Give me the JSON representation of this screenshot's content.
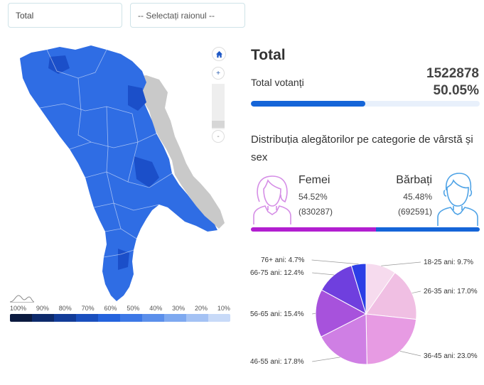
{
  "filters": {
    "scope_value": "Total",
    "raion_placeholder": "-- Selectați raionul --"
  },
  "map": {
    "home_icon": "home-icon",
    "zoom_in_label": "+",
    "zoom_out_label": "-",
    "legend_labels": [
      "100%",
      "90%",
      "80%",
      "70%",
      "60%",
      "50%",
      "40%",
      "30%",
      "20%",
      "10%"
    ],
    "legend_colors": [
      "#0b1a3f",
      "#0d2a6b",
      "#123c98",
      "#1a4fbe",
      "#2463dd",
      "#3d78e6",
      "#5b8feb",
      "#7ea9f0",
      "#a4c2f4",
      "#c8daf8"
    ],
    "region_color": "#2f6de4",
    "region_dark_color": "#1b4fc9",
    "transnistria_color": "#c9c9c9"
  },
  "summary": {
    "title": "Total",
    "votanti_label": "Total votanți",
    "votanti_count": "1522878",
    "votanti_percent": "50.05%",
    "progress_fraction": 0.5005
  },
  "distribution": {
    "title": "Distribuția alegătorilor pe categorie de vârstă și sex",
    "female": {
      "label": "Femei",
      "percent": "54.52%",
      "count": "(830287)",
      "fraction": 0.5452,
      "color": "#b21ed0"
    },
    "male": {
      "label": "Bărbați",
      "percent": "45.48%",
      "count": "(692591)",
      "fraction": 0.4548,
      "color": "#1565d8"
    }
  },
  "chart_data": {
    "type": "pie",
    "categories": [
      "18-25 ani",
      "26-35 ani",
      "36-45 ani",
      "46-55 ani",
      "56-65 ani",
      "66-75 ani",
      "76+ ani"
    ],
    "values": [
      9.7,
      17.0,
      23.0,
      17.8,
      15.4,
      12.4,
      4.7
    ],
    "labels": [
      "18-25 ani: 9.7%",
      "26-35 ani: 17.0%",
      "36-45 ani: 23.0%",
      "46-55 ani: 17.8%",
      "56-65 ani: 15.4%",
      "66-75 ani: 12.4%",
      "76+ ani: 4.7%"
    ],
    "colors": [
      "#f6dbee",
      "#f0bfe3",
      "#e79be3",
      "#cf7fe4",
      "#a752dc",
      "#6f3fde",
      "#2b3ee6"
    ]
  }
}
